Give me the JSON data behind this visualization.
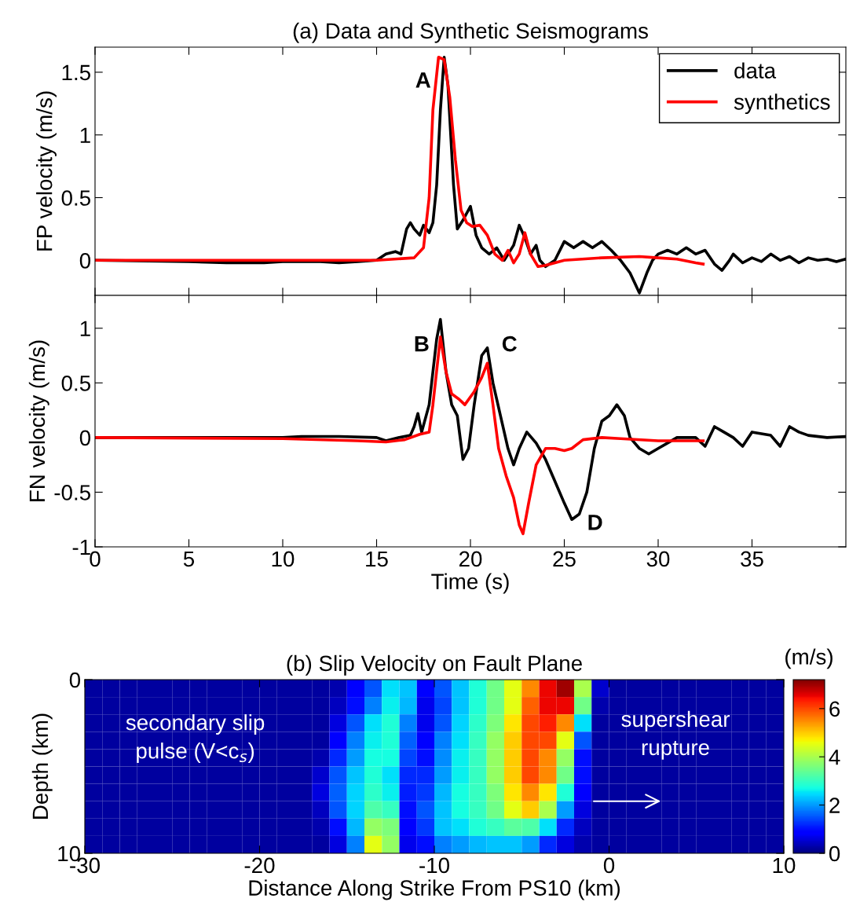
{
  "chart_data": [
    {
      "type": "line",
      "title": "(a) Data and Synthetic Seismograms",
      "ylabel": "FP velocity (m/s)",
      "xlim": [
        0,
        40
      ],
      "xticks": [
        0,
        5,
        10,
        15,
        20,
        25,
        30,
        35
      ],
      "ylim": [
        -0.28,
        1.7
      ],
      "yticks": [
        0,
        0.5,
        1,
        1.5
      ],
      "tick_labels": "y",
      "legend": "top right",
      "series": [
        {
          "name": "data",
          "color": "#000000",
          "x": [
            0,
            5,
            7,
            9,
            10,
            12,
            13,
            14,
            15,
            15.5,
            16,
            16.3,
            16.6,
            16.8,
            17,
            17.3,
            17.5,
            17.8,
            18,
            18.2,
            18.4,
            18.6,
            18.8,
            19.1,
            19.3,
            19.6,
            20,
            20.3,
            20.6,
            21,
            21.4,
            21.8,
            22.3,
            22.6,
            22.9,
            23.2,
            23.5,
            23.7,
            24,
            24.5,
            25,
            25.5,
            26,
            26.5,
            27,
            27.5,
            28,
            28.5,
            29,
            29.4,
            29.7,
            30,
            30.5,
            31,
            31.5,
            32,
            32.5,
            33,
            33.4,
            33.8,
            34,
            34.5,
            35,
            35.5,
            36,
            36.5,
            37,
            37.5,
            38,
            38.5,
            39,
            39.5,
            40
          ],
          "values": [
            0,
            -0.01,
            -0.02,
            -0.02,
            -0.01,
            -0.01,
            -0.02,
            -0.01,
            0,
            0.05,
            0.07,
            0.05,
            0.25,
            0.3,
            0.25,
            0.2,
            0.28,
            0.22,
            0.3,
            0.6,
            1.2,
            1.62,
            1.4,
            0.6,
            0.25,
            0.32,
            0.43,
            0.2,
            0.1,
            0.05,
            0.1,
            0,
            0.12,
            0.28,
            0.18,
            0.05,
            0.12,
            0,
            -0.05,
            0,
            0.15,
            0.1,
            0.15,
            0.1,
            0.15,
            0.08,
            0,
            -0.1,
            -0.26,
            -0.1,
            0,
            0.05,
            0.08,
            0.05,
            0.1,
            0.05,
            0.08,
            -0.03,
            -0.08,
            0,
            0.05,
            -0.02,
            0.02,
            -0.01,
            0.05,
            0,
            0.03,
            -0.02,
            0.02,
            0,
            0.01,
            -0.01,
            0.01
          ]
        },
        {
          "name": "synthetics",
          "color": "#ff0000",
          "x": [
            0,
            10,
            15,
            17,
            17.5,
            17.8,
            18,
            18.3,
            18.6,
            18.9,
            19.2,
            19.5,
            19.8,
            20.1,
            20.5,
            20.9,
            21.3,
            21.7,
            22,
            22.3,
            22.6,
            22.9,
            23.2,
            23.6,
            24,
            25,
            27,
            29,
            30,
            31,
            32,
            32.4
          ],
          "values": [
            0,
            0,
            0,
            0.02,
            0.1,
            0.5,
            1.2,
            1.62,
            1.6,
            1.3,
            0.8,
            0.4,
            0.3,
            0.27,
            0.28,
            0.2,
            0.05,
            0,
            0.08,
            -0.02,
            0.05,
            0.22,
            0.05,
            -0.05,
            -0.04,
            0,
            0.02,
            0.03,
            0.02,
            0.01,
            -0.02,
            -0.03
          ]
        }
      ],
      "annotations": [
        "A"
      ]
    },
    {
      "type": "line",
      "xlabel": "Time (s)",
      "ylabel": "FN velocity (m/s)",
      "xlim": [
        0,
        40
      ],
      "xticks": [
        0,
        5,
        10,
        15,
        20,
        25,
        30,
        35
      ],
      "ylim": [
        -1,
        1.3
      ],
      "yticks": [
        -1,
        -0.5,
        0,
        0.5,
        1
      ],
      "series": [
        {
          "color": "#000000",
          "x": [
            0,
            10,
            11,
            13,
            15,
            15.5,
            16.2,
            16.8,
            17,
            17.2,
            17.4,
            17.8,
            18.2,
            18.4,
            18.7,
            19,
            19.3,
            19.6,
            19.9,
            20.2,
            20.6,
            20.9,
            21.2,
            21.6,
            22,
            22.3,
            22.6,
            23,
            23.5,
            24,
            24.5,
            25,
            25.4,
            25.8,
            26.2,
            26.6,
            27,
            27.4,
            27.8,
            28.2,
            28.5,
            29,
            29.5,
            30,
            30.5,
            31,
            32,
            32.5,
            33,
            33.5,
            34,
            34.5,
            35,
            36,
            36.5,
            37,
            37.5,
            38,
            39,
            40
          ],
          "values": [
            0,
            0,
            0.01,
            0.01,
            0,
            -0.03,
            0,
            0.02,
            0.1,
            0.22,
            0.05,
            0.3,
            0.9,
            1.08,
            0.6,
            0.3,
            0.2,
            -0.2,
            -0.1,
            0.3,
            0.75,
            0.82,
            0.5,
            0.2,
            -0.1,
            -0.25,
            -0.1,
            0.05,
            -0.05,
            -0.2,
            -0.4,
            -0.6,
            -0.75,
            -0.7,
            -0.5,
            -0.1,
            0.15,
            0.2,
            0.3,
            0.2,
            0,
            -0.1,
            -0.15,
            -0.1,
            -0.05,
            0,
            0,
            -0.08,
            0.1,
            0.05,
            0,
            -0.08,
            0.05,
            0.02,
            -0.08,
            0.1,
            0.05,
            0.02,
            0,
            0.01
          ]
        },
        {
          "color": "#ff0000",
          "x": [
            0,
            10,
            14,
            15.5,
            16.5,
            17.3,
            17.8,
            18,
            18.4,
            18.7,
            19,
            19.4,
            19.7,
            20.2,
            20.6,
            20.9,
            21.2,
            21.5,
            21.9,
            22.3,
            22.6,
            22.8,
            23.1,
            23.5,
            24,
            24.5,
            25,
            25.4,
            26,
            27,
            28,
            30,
            31,
            32.4
          ],
          "values": [
            0,
            -0.01,
            -0.03,
            -0.04,
            -0.02,
            0.03,
            0.05,
            0.3,
            0.92,
            0.6,
            0.4,
            0.35,
            0.3,
            0.42,
            0.55,
            0.68,
            0.3,
            -0.1,
            -0.35,
            -0.55,
            -0.8,
            -0.88,
            -0.6,
            -0.25,
            -0.1,
            -0.1,
            -0.12,
            -0.1,
            -0.02,
            0,
            -0.01,
            -0.03,
            -0.03,
            -0.03
          ]
        }
      ],
      "annotations": [
        "B",
        "C",
        "D"
      ]
    },
    {
      "type": "heatmap",
      "title": "(b) Slip Velocity on Fault Plane",
      "xlabel": "Distance Along Strike From PS10 (km)",
      "ylabel": "Depth (km)",
      "clabel": "(m/s)",
      "xlim": [
        -30,
        10
      ],
      "xticks": [
        -30,
        -20,
        -10,
        0,
        10
      ],
      "ylim": [
        10,
        0
      ],
      "yticks": [
        0,
        10
      ],
      "clim": [
        0,
        7.2
      ],
      "cticks": [
        0,
        2,
        4,
        6
      ],
      "x": [
        -29.5,
        -28.5,
        -27.5,
        -26.5,
        -25.5,
        -24.5,
        -23.5,
        -22.5,
        -21.5,
        -20.5,
        -19.5,
        -18.5,
        -17.5,
        -16.5,
        -15.5,
        -14.5,
        -13.5,
        -12.5,
        -11.5,
        -10.5,
        -9.5,
        -8.5,
        -7.5,
        -6.5,
        -5.5,
        -4.5,
        -3.5,
        -2.5,
        -1.5,
        -0.5,
        0.5,
        1.5,
        2.5,
        3.5,
        4.5,
        5.5,
        6.5,
        7.5,
        8.5,
        9.5
      ],
      "y": [
        0.5,
        1.5,
        2.5,
        3.5,
        4.5,
        5.5,
        6.5,
        7.5,
        8.5,
        9.5
      ],
      "cells": [
        [
          0.2,
          0.2,
          0.2,
          0.2,
          0.2,
          0.2,
          0.2,
          0.2,
          0.2,
          0.2,
          0.2,
          0.2,
          0.2,
          0.2,
          0.3,
          0.8,
          1.5,
          2.5,
          2.3,
          0.8,
          1.5,
          2.3,
          2.8,
          3.5,
          4.5,
          5.5,
          6.5,
          7.0,
          4.0,
          0.5,
          0.2,
          0.2,
          0.2,
          0.2,
          0.2,
          0.2,
          0.2,
          0.2,
          0.2,
          0.2
        ],
        [
          0.2,
          0.2,
          0.2,
          0.2,
          0.2,
          0.2,
          0.2,
          0.2,
          0.2,
          0.2,
          0.2,
          0.2,
          0.2,
          0.2,
          0.4,
          1.0,
          1.8,
          2.6,
          2.2,
          0.7,
          1.4,
          2.3,
          2.8,
          3.5,
          4.5,
          5.8,
          6.5,
          6.5,
          3.5,
          0.3,
          0.2,
          0.2,
          0.2,
          0.2,
          0.2,
          0.2,
          0.2,
          0.2,
          0.2,
          0.2
        ],
        [
          0.2,
          0.2,
          0.2,
          0.2,
          0.2,
          0.2,
          0.2,
          0.2,
          0.2,
          0.2,
          0.2,
          0.2,
          0.2,
          0.2,
          0.6,
          1.5,
          2.5,
          2.8,
          1.8,
          0.7,
          1.5,
          2.4,
          2.9,
          3.6,
          4.8,
          6.0,
          6.3,
          5.5,
          2.5,
          0.2,
          0.2,
          0.2,
          0.2,
          0.2,
          0.2,
          0.2,
          0.2,
          0.2,
          0.2,
          0.2
        ],
        [
          0.2,
          0.2,
          0.2,
          0.2,
          0.2,
          0.2,
          0.2,
          0.2,
          0.2,
          0.2,
          0.2,
          0.2,
          0.2,
          0.2,
          0.8,
          1.8,
          2.6,
          2.8,
          1.6,
          0.8,
          1.8,
          2.5,
          3.0,
          3.8,
          5.0,
          6.0,
          6.0,
          4.5,
          1.5,
          0.2,
          0.2,
          0.2,
          0.2,
          0.2,
          0.2,
          0.2,
          0.2,
          0.2,
          0.2,
          0.2
        ],
        [
          0.2,
          0.2,
          0.2,
          0.2,
          0.2,
          0.2,
          0.2,
          0.2,
          0.2,
          0.2,
          0.2,
          0.2,
          0.2,
          0.3,
          1.2,
          2.0,
          2.7,
          2.7,
          1.4,
          1.0,
          1.9,
          2.6,
          3.0,
          3.8,
          5.0,
          6.0,
          5.5,
          3.8,
          1.0,
          0.2,
          0.2,
          0.2,
          0.2,
          0.2,
          0.2,
          0.2,
          0.2,
          0.2,
          0.2,
          0.2
        ],
        [
          0.2,
          0.2,
          0.2,
          0.2,
          0.2,
          0.2,
          0.2,
          0.2,
          0.2,
          0.2,
          0.2,
          0.2,
          0.2,
          0.5,
          1.5,
          2.3,
          2.8,
          2.5,
          1.2,
          1.2,
          2.0,
          2.6,
          3.0,
          3.8,
          5.0,
          6.0,
          5.5,
          3.5,
          1.0,
          0.2,
          0.2,
          0.2,
          0.2,
          0.2,
          0.2,
          0.2,
          0.2,
          0.2,
          0.2,
          0.2
        ],
        [
          0.2,
          0.2,
          0.2,
          0.2,
          0.2,
          0.2,
          0.2,
          0.2,
          0.2,
          0.2,
          0.2,
          0.2,
          0.2,
          0.6,
          1.6,
          2.4,
          2.9,
          2.6,
          1.1,
          1.3,
          2.2,
          2.7,
          3.0,
          3.6,
          4.8,
          5.5,
          4.8,
          2.8,
          0.8,
          0.2,
          0.2,
          0.2,
          0.2,
          0.2,
          0.2,
          0.2,
          0.2,
          0.2,
          0.2,
          0.2
        ],
        [
          0.2,
          0.2,
          0.2,
          0.2,
          0.2,
          0.2,
          0.2,
          0.2,
          0.2,
          0.2,
          0.2,
          0.2,
          0.2,
          0.4,
          1.5,
          2.4,
          3.2,
          3.0,
          1.0,
          1.5,
          2.3,
          2.7,
          3.0,
          3.5,
          4.5,
          5.0,
          4.0,
          2.0,
          0.6,
          0.2,
          0.2,
          0.2,
          0.2,
          0.2,
          0.2,
          0.2,
          0.2,
          0.2,
          0.2,
          0.2
        ],
        [
          0.2,
          0.2,
          0.2,
          0.2,
          0.2,
          0.2,
          0.2,
          0.2,
          0.2,
          0.2,
          0.2,
          0.2,
          0.2,
          0.3,
          1.0,
          2.2,
          3.8,
          3.6,
          0.9,
          1.3,
          2.3,
          2.5,
          2.8,
          3.0,
          3.3,
          3.2,
          2.5,
          1.2,
          0.4,
          0.2,
          0.2,
          0.2,
          0.2,
          0.2,
          0.2,
          0.2,
          0.2,
          0.2,
          0.2,
          0.2
        ],
        [
          0.2,
          0.2,
          0.2,
          0.2,
          0.2,
          0.2,
          0.2,
          0.2,
          0.2,
          0.2,
          0.2,
          0.2,
          0.2,
          0.2,
          0.6,
          1.8,
          4.5,
          3.8,
          0.7,
          1.0,
          1.8,
          2.0,
          2.2,
          2.3,
          2.3,
          2.0,
          1.2,
          0.6,
          0.3,
          0.2,
          0.2,
          0.2,
          0.2,
          0.2,
          0.2,
          0.2,
          0.2,
          0.2,
          0.2,
          0.2
        ]
      ],
      "annotations": [
        "secondary slip\npulse (V<c$_{s}$)",
        "supershear\nrupture"
      ]
    }
  ]
}
